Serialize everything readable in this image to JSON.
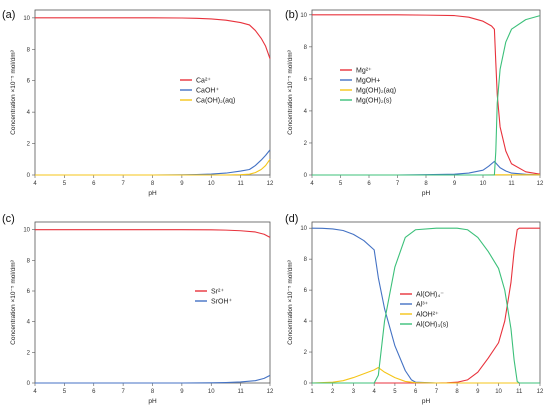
{
  "chart_data": [
    {
      "type": "line",
      "panel_label": "(a)",
      "xlabel": "pH",
      "ylabel": "Concentration ×10⁻⁵ mol/dm³",
      "xlim": [
        4,
        12
      ],
      "ylim": [
        0,
        10.5
      ],
      "xticks": [
        "4",
        "5",
        "6",
        "7",
        "8",
        "9",
        "10",
        "11",
        "12"
      ],
      "yticks": [
        "0",
        "2",
        "4",
        "6",
        "8",
        "10"
      ],
      "legend_position": "center-right",
      "series": [
        {
          "name": "Ca²⁺",
          "color": "#e8323c",
          "x": [
            4,
            5,
            6,
            7,
            8,
            9,
            9.5,
            10,
            10.5,
            11,
            11.3,
            11.5,
            11.7,
            11.85,
            12
          ],
          "values": [
            10,
            10,
            10,
            10,
            10,
            9.99,
            9.97,
            9.93,
            9.85,
            9.7,
            9.55,
            9.2,
            8.7,
            8.2,
            7.4
          ]
        },
        {
          "name": "CaOH⁺",
          "color": "#4472c4",
          "x": [
            4,
            5,
            6,
            7,
            8,
            9,
            9.5,
            10,
            10.5,
            11,
            11.3,
            11.5,
            11.7,
            11.85,
            12
          ],
          "values": [
            0,
            0,
            0,
            0,
            0,
            0.01,
            0.03,
            0.06,
            0.12,
            0.25,
            0.35,
            0.6,
            0.95,
            1.25,
            1.6
          ]
        },
        {
          "name": "Ca(OH)₂(aq)",
          "color": "#f5c518",
          "x": [
            4,
            5,
            6,
            7,
            8,
            9,
            10,
            10.5,
            11,
            11.3,
            11.5,
            11.7,
            11.85,
            12
          ],
          "values": [
            0,
            0,
            0,
            0,
            0,
            0,
            0,
            0,
            0.02,
            0.05,
            0.15,
            0.35,
            0.6,
            1.0
          ]
        }
      ]
    },
    {
      "type": "line",
      "panel_label": "(b)",
      "xlabel": "pH",
      "ylabel": "Concentration ×10⁻⁵ mol/dm³",
      "xlim": [
        4,
        12
      ],
      "ylim": [
        0,
        10.3
      ],
      "xticks": [
        "4",
        "5",
        "6",
        "7",
        "8",
        "9",
        "10",
        "11",
        "12"
      ],
      "yticks": [
        "0",
        "2",
        "4",
        "6",
        "8",
        "10"
      ],
      "legend_position": "center-left",
      "series": [
        {
          "name": "Mg²⁺",
          "color": "#e8323c",
          "x": [
            4,
            5,
            6,
            7,
            8,
            9,
            9.5,
            10,
            10.3,
            10.4,
            10.45,
            10.5,
            10.6,
            10.8,
            11,
            11.5,
            12
          ],
          "values": [
            10,
            10,
            10,
            10,
            9.98,
            9.95,
            9.85,
            9.6,
            9.3,
            9.1,
            7.0,
            5.0,
            3.0,
            1.5,
            0.7,
            0.2,
            0.05
          ]
        },
        {
          "name": "MgOH+",
          "color": "#4472c4",
          "x": [
            4,
            5,
            6,
            7,
            8,
            9,
            9.5,
            10,
            10.2,
            10.4,
            10.5,
            10.6,
            10.8,
            11,
            11.5,
            12
          ],
          "values": [
            0,
            0,
            0,
            0,
            0.02,
            0.05,
            0.12,
            0.3,
            0.55,
            0.85,
            0.65,
            0.45,
            0.25,
            0.12,
            0.04,
            0.01
          ]
        },
        {
          "name": "Mg(OH)₂(aq)",
          "color": "#f5c518",
          "x": [
            4,
            6,
            8,
            10,
            10.5,
            11,
            12
          ],
          "values": [
            0,
            0,
            0,
            0,
            0.01,
            0.01,
            0.01
          ]
        },
        {
          "name": "Mg(OH)₂(s)",
          "color": "#3cc07a",
          "x": [
            4,
            6,
            8,
            10,
            10.4,
            10.45,
            10.5,
            10.6,
            10.8,
            11,
            11.5,
            12
          ],
          "values": [
            0,
            0,
            0,
            0,
            0,
            1.5,
            4.5,
            6.6,
            8.3,
            9.1,
            9.7,
            9.95
          ]
        }
      ]
    },
    {
      "type": "line",
      "panel_label": "(c)",
      "xlabel": "pH",
      "ylabel": "Concentration ×10⁻⁵ mol/dm³",
      "xlim": [
        4,
        12
      ],
      "ylim": [
        0,
        10.5
      ],
      "xticks": [
        "4",
        "5",
        "6",
        "7",
        "8",
        "9",
        "10",
        "11",
        "12"
      ],
      "yticks": [
        "0",
        "2",
        "4",
        "6",
        "8",
        "10"
      ],
      "legend_position": "center-right",
      "series": [
        {
          "name": "Sr²⁺",
          "color": "#e8323c",
          "x": [
            4,
            5,
            6,
            7,
            8,
            9,
            10,
            10.5,
            11,
            11.5,
            11.8,
            12
          ],
          "values": [
            10,
            10,
            10,
            10,
            10,
            10,
            9.99,
            9.97,
            9.93,
            9.85,
            9.7,
            9.5
          ]
        },
        {
          "name": "SrOH⁺",
          "color": "#4472c4",
          "x": [
            4,
            5,
            6,
            7,
            8,
            9,
            10,
            10.5,
            11,
            11.5,
            11.8,
            12
          ],
          "values": [
            0,
            0,
            0,
            0,
            0,
            0,
            0.01,
            0.03,
            0.07,
            0.15,
            0.3,
            0.5
          ]
        }
      ]
    },
    {
      "type": "line",
      "panel_label": "(d)",
      "xlabel": "pH",
      "ylabel": "Concentration ×10⁻⁵ mol/dm³",
      "xlim": [
        1,
        12
      ],
      "ylim": [
        0,
        10.4
      ],
      "xticks": [
        "1",
        "2",
        "3",
        "4",
        "5",
        "6",
        "7",
        "8",
        "9",
        "10",
        "11",
        "12"
      ],
      "yticks": [
        "0",
        "2",
        "4",
        "6",
        "8",
        "10"
      ],
      "legend_position": "center-right",
      "series": [
        {
          "name": "Al(OH)₄⁻",
          "color": "#e8323c",
          "x": [
            1,
            4,
            7,
            7.5,
            8,
            8.5,
            9,
            9.5,
            10,
            10.3,
            10.6,
            10.75,
            10.9,
            11,
            11.5,
            12
          ],
          "values": [
            0,
            0,
            0,
            0.01,
            0.05,
            0.2,
            0.7,
            1.6,
            2.6,
            4.0,
            6.5,
            8.5,
            9.9,
            10,
            10,
            10
          ]
        },
        {
          "name": "Al³⁺",
          "color": "#4472c4",
          "x": [
            1,
            1.5,
            2,
            2.5,
            3,
            3.5,
            4,
            4.2,
            4.5,
            5,
            5.5,
            5.8,
            6,
            7,
            12
          ],
          "values": [
            10,
            9.99,
            9.95,
            9.85,
            9.6,
            9.2,
            8.6,
            6.8,
            4.8,
            2.4,
            0.8,
            0.2,
            0.05,
            0,
            0
          ]
        },
        {
          "name": "AlOH²⁺",
          "color": "#f5c518",
          "x": [
            1,
            2,
            2.5,
            3,
            3.5,
            4,
            4.2,
            4.5,
            5,
            5.5,
            6,
            7,
            12
          ],
          "values": [
            0,
            0.05,
            0.15,
            0.35,
            0.6,
            0.85,
            1.0,
            0.7,
            0.35,
            0.1,
            0.02,
            0,
            0
          ]
        },
        {
          "name": "Al(OH)₃(s)",
          "color": "#3cc07a",
          "x": [
            1,
            3,
            4,
            4.2,
            4.5,
            5,
            5.5,
            6,
            7,
            8,
            8.5,
            9,
            9.5,
            10,
            10.3,
            10.6,
            10.75,
            10.9,
            11,
            12
          ],
          "values": [
            0,
            0,
            0,
            0.5,
            4.0,
            7.5,
            9.4,
            9.9,
            10,
            10,
            9.9,
            9.4,
            8.5,
            7.4,
            6.0,
            3.5,
            1.5,
            0.1,
            0,
            0
          ]
        }
      ]
    }
  ]
}
